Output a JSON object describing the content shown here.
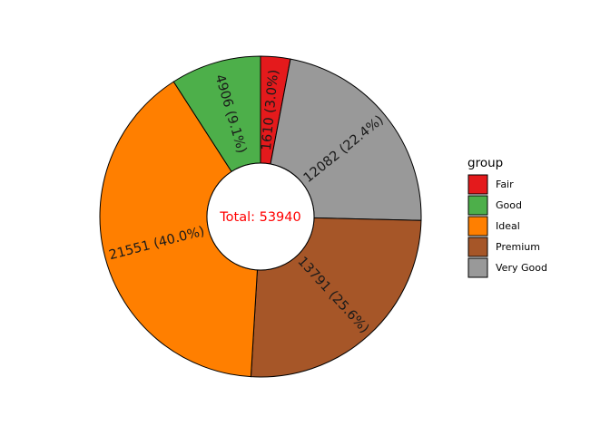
{
  "chart_data": {
    "type": "pie",
    "variant": "donut",
    "total_label": "Total: 53940",
    "total_color": "#ff0000",
    "legend_title": "group",
    "legend_position": "right",
    "slices": [
      {
        "name": "Fair",
        "value": 1610,
        "label": "1610 (3.0%)",
        "color": "#e41a1c"
      },
      {
        "name": "Very Good",
        "value": 12082,
        "label": "12082 (22.4%)",
        "color": "#999999"
      },
      {
        "name": "Premium",
        "value": 13791,
        "label": "13791 (25.6%)",
        "color": "#a65628"
      },
      {
        "name": "Ideal",
        "value": 21551,
        "label": "21551 (40.0%)",
        "color": "#ff7f00"
      },
      {
        "name": "Good",
        "value": 4906,
        "label": "4906 (9.1%)",
        "color": "#4daf4a"
      }
    ],
    "legend": [
      {
        "name": "Fair",
        "color": "#e41a1c"
      },
      {
        "name": "Good",
        "color": "#4daf4a"
      },
      {
        "name": "Ideal",
        "color": "#ff7f00"
      },
      {
        "name": "Premium",
        "color": "#a65628"
      },
      {
        "name": "Very Good",
        "color": "#999999"
      }
    ]
  }
}
